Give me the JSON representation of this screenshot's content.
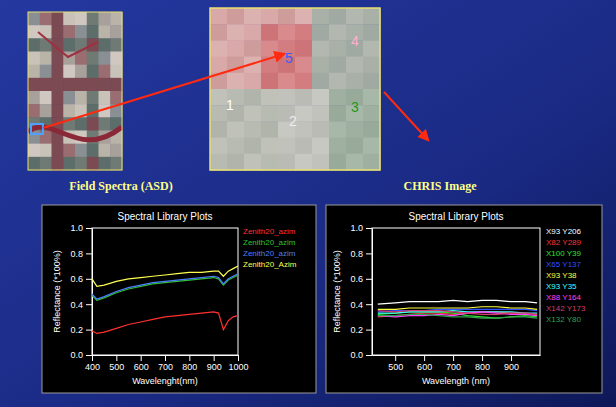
{
  "slide": {
    "captions": [
      "Field Spectra (ASD)",
      "CHRIS Image"
    ],
    "zoom_labels": [
      "1",
      "2",
      "3",
      "4",
      "5"
    ]
  },
  "chart_data": [
    {
      "type": "line",
      "title": "Spectral Library Plots",
      "x_label": "Wavelenght(nm)",
      "y_label": "Reflectance (*100%)",
      "x": [
        400,
        420,
        450,
        500,
        550,
        600,
        650,
        700,
        750,
        800,
        850,
        900,
        920,
        940,
        960,
        980,
        1000
      ],
      "xlim": [
        400,
        1000
      ],
      "xticks": [
        400,
        500,
        600,
        700,
        800,
        900,
        1000
      ],
      "ylim": [
        0,
        1
      ],
      "yticks": [
        {
          "value": 0,
          "label": "0.0"
        },
        0.2,
        0.4,
        0.6,
        0.8,
        {
          "value": 1,
          "label": "1.0"
        }
      ],
      "legend": "right",
      "series": [
        {
          "name": "Zenith20_azim",
          "color": "#ff3030",
          "values": [
            0.19,
            0.17,
            0.18,
            0.21,
            0.24,
            0.26,
            0.28,
            0.3,
            0.31,
            0.32,
            0.33,
            0.34,
            0.33,
            0.2,
            0.27,
            0.3,
            0.31
          ]
        },
        {
          "name": "Zenith20_azim",
          "color": "#30c030",
          "values": [
            0.47,
            0.43,
            0.45,
            0.49,
            0.52,
            0.54,
            0.56,
            0.57,
            0.58,
            0.59,
            0.6,
            0.61,
            0.6,
            0.55,
            0.59,
            0.61,
            0.63
          ]
        },
        {
          "name": "Zenith20_azim",
          "color": "#4a7dff",
          "values": [
            0.48,
            0.44,
            0.46,
            0.5,
            0.53,
            0.55,
            0.57,
            0.58,
            0.59,
            0.6,
            0.61,
            0.62,
            0.61,
            0.56,
            0.6,
            0.62,
            0.64
          ]
        },
        {
          "name": "Zenith20_Azim",
          "color": "#ffff50",
          "values": [
            0.6,
            0.54,
            0.55,
            0.58,
            0.6,
            0.61,
            0.62,
            0.63,
            0.64,
            0.65,
            0.65,
            0.66,
            0.66,
            0.62,
            0.66,
            0.68,
            0.7
          ]
        }
      ]
    },
    {
      "type": "line",
      "title": "Spectral Library Plots",
      "x_label": "Wavelength (nm)",
      "y_label": "Reflectance (*100%)",
      "x": [
        440,
        500,
        550,
        600,
        650,
        700,
        750,
        800,
        850,
        900,
        950,
        990
      ],
      "xlim": [
        420,
        1000
      ],
      "xticks": [
        500,
        600,
        700,
        800,
        900
      ],
      "ylim": [
        0,
        1
      ],
      "yticks": [
        {
          "value": 0,
          "label": "0.0"
        },
        0.2,
        0.4,
        0.6,
        0.8,
        {
          "value": 1,
          "label": "1.0"
        }
      ],
      "legend": "right",
      "series": [
        {
          "name": "X93 Y206",
          "color": "#ffffff",
          "values": [
            0.4,
            0.41,
            0.42,
            0.42,
            0.42,
            0.43,
            0.42,
            0.43,
            0.43,
            0.42,
            0.42,
            0.41
          ]
        },
        {
          "name": "X82 Y289",
          "color": "#ff3030",
          "values": [
            0.3,
            0.31,
            0.32,
            0.33,
            0.33,
            0.32,
            0.33,
            0.34,
            0.34,
            0.33,
            0.33,
            0.32
          ]
        },
        {
          "name": "X100 Y39",
          "color": "#30e030",
          "values": [
            0.32,
            0.33,
            0.34,
            0.34,
            0.34,
            0.33,
            0.31,
            0.3,
            0.29,
            0.3,
            0.31,
            0.3
          ]
        },
        {
          "name": "X65 Y137",
          "color": "#3050ff",
          "values": [
            0.34,
            0.35,
            0.35,
            0.35,
            0.36,
            0.36,
            0.36,
            0.36,
            0.36,
            0.36,
            0.36,
            0.35
          ]
        },
        {
          "name": "X93 Y38",
          "color": "#ffff40",
          "values": [
            0.36,
            0.36,
            0.37,
            0.37,
            0.37,
            0.37,
            0.37,
            0.38,
            0.38,
            0.37,
            0.37,
            0.36
          ]
        },
        {
          "name": "X93 Y35",
          "color": "#40ffff",
          "values": [
            0.33,
            0.33,
            0.34,
            0.34,
            0.34,
            0.35,
            0.34,
            0.34,
            0.34,
            0.34,
            0.33,
            0.33
          ]
        },
        {
          "name": "X88 Y164",
          "color": "#ff40ff",
          "values": [
            0.31,
            0.3,
            0.31,
            0.31,
            0.32,
            0.31,
            0.33,
            0.34,
            0.33,
            0.32,
            0.32,
            0.31
          ]
        },
        {
          "name": "X142 Y173",
          "color": "#d04070",
          "values": [
            0.35,
            0.34,
            0.35,
            0.35,
            0.35,
            0.34,
            0.33,
            0.32,
            0.32,
            0.33,
            0.33,
            0.32
          ]
        },
        {
          "name": "X132 Y80",
          "color": "#30a050",
          "values": [
            0.31,
            0.31,
            0.32,
            0.32,
            0.31,
            0.3,
            0.3,
            0.29,
            0.29,
            0.3,
            0.3,
            0.29
          ]
        }
      ]
    }
  ]
}
